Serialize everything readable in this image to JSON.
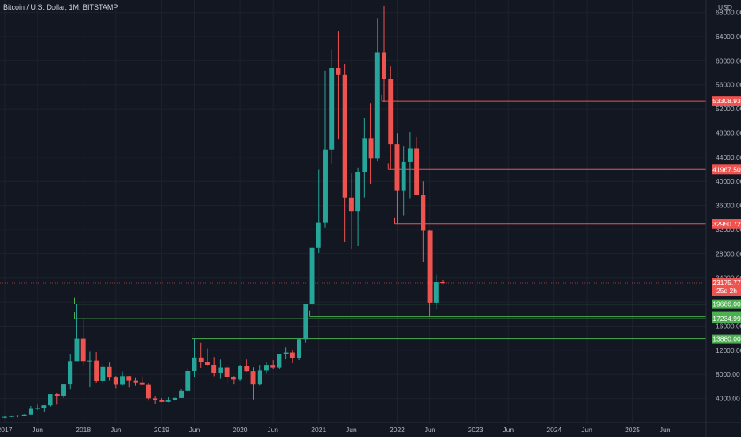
{
  "chart_data": {
    "type": "candlestick",
    "title": "Bitcoin / U.S. Dollar, 1M, BITSTAMP",
    "currency": "USD",
    "ylim": [
      0,
      69000
    ],
    "ytick_values": [
      4000,
      8000,
      12000,
      16000,
      20000,
      24000,
      28000,
      32000,
      36000,
      40000,
      44000,
      48000,
      52000,
      56000,
      60000,
      64000,
      68000
    ],
    "ytick_labels": [
      "4000.00",
      "8000.00",
      "12000.00",
      "16000.00",
      "20000.00",
      "24000.00",
      "28000.00",
      "32000.00",
      "36000.00",
      "40000.00",
      "44000.00",
      "48000.00",
      "52000.00",
      "56000.00",
      "60000.00",
      "64000.00",
      "68000.00"
    ],
    "x_start": "2017-01",
    "x_end": "2025-12",
    "xticks": [
      {
        "date": "2017-01",
        "label": "2017"
      },
      {
        "date": "2017-06",
        "label": "Jun"
      },
      {
        "date": "2018-01",
        "label": "2018"
      },
      {
        "date": "2018-06",
        "label": "Jun"
      },
      {
        "date": "2019-01",
        "label": "2019"
      },
      {
        "date": "2019-06",
        "label": "Jun"
      },
      {
        "date": "2020-01",
        "label": "2020"
      },
      {
        "date": "2020-06",
        "label": "Jun"
      },
      {
        "date": "2021-01",
        "label": "2021"
      },
      {
        "date": "2021-06",
        "label": "Jun"
      },
      {
        "date": "2022-01",
        "label": "2022"
      },
      {
        "date": "2022-06",
        "label": "Jun"
      },
      {
        "date": "2023-01",
        "label": "2023"
      },
      {
        "date": "2023-06",
        "label": "Jun"
      },
      {
        "date": "2024-01",
        "label": "2024"
      },
      {
        "date": "2024-06",
        "label": "Jun"
      },
      {
        "date": "2025-01",
        "label": "2025"
      },
      {
        "date": "2025-06",
        "label": "Jun"
      }
    ],
    "colors": {
      "up": "#26a69a",
      "down": "#ef5350",
      "support": "#4caf50",
      "resistance": "#ef5350",
      "current": "#ef5350",
      "background": "#131722"
    },
    "candles": [
      {
        "date": "2017-01",
        "o": 970,
        "h": 1200,
        "l": 750,
        "c": 970
      },
      {
        "date": "2017-02",
        "o": 970,
        "h": 1200,
        "l": 920,
        "c": 1190
      },
      {
        "date": "2017-03",
        "o": 1190,
        "h": 1290,
        "l": 890,
        "c": 1080
      },
      {
        "date": "2017-04",
        "o": 1080,
        "h": 1420,
        "l": 1080,
        "c": 1350
      },
      {
        "date": "2017-05",
        "o": 1350,
        "h": 2760,
        "l": 1350,
        "c": 2300
      },
      {
        "date": "2017-06",
        "o": 2300,
        "h": 2990,
        "l": 2100,
        "c": 2480
      },
      {
        "date": "2017-07",
        "o": 2480,
        "h": 2920,
        "l": 1840,
        "c": 2870
      },
      {
        "date": "2017-08",
        "o": 2870,
        "h": 4480,
        "l": 2700,
        "c": 4730
      },
      {
        "date": "2017-09",
        "o": 4730,
        "h": 4980,
        "l": 2980,
        "c": 4340
      },
      {
        "date": "2017-10",
        "o": 4340,
        "h": 6470,
        "l": 4110,
        "c": 6440
      },
      {
        "date": "2017-11",
        "o": 6440,
        "h": 11400,
        "l": 5500,
        "c": 10230
      },
      {
        "date": "2017-12",
        "o": 10230,
        "h": 19666,
        "l": 10230,
        "c": 13880
      },
      {
        "date": "2018-01",
        "o": 13880,
        "h": 17200,
        "l": 9400,
        "c": 10230
      },
      {
        "date": "2018-02",
        "o": 10230,
        "h": 11790,
        "l": 5920,
        "c": 10320
      },
      {
        "date": "2018-03",
        "o": 10320,
        "h": 11700,
        "l": 6600,
        "c": 6930
      },
      {
        "date": "2018-04",
        "o": 6930,
        "h": 9760,
        "l": 6430,
        "c": 9240
      },
      {
        "date": "2018-05",
        "o": 9240,
        "h": 9990,
        "l": 7040,
        "c": 7490
      },
      {
        "date": "2018-06",
        "o": 7490,
        "h": 7760,
        "l": 5750,
        "c": 6390
      },
      {
        "date": "2018-07",
        "o": 6390,
        "h": 8500,
        "l": 6110,
        "c": 7730
      },
      {
        "date": "2018-08",
        "o": 7730,
        "h": 7760,
        "l": 5880,
        "c": 7030
      },
      {
        "date": "2018-09",
        "o": 7030,
        "h": 7410,
        "l": 6100,
        "c": 6620
      },
      {
        "date": "2018-10",
        "o": 6620,
        "h": 7680,
        "l": 6200,
        "c": 6370
      },
      {
        "date": "2018-11",
        "o": 6370,
        "h": 6580,
        "l": 3650,
        "c": 4040
      },
      {
        "date": "2018-12",
        "o": 4040,
        "h": 4340,
        "l": 3150,
        "c": 3700
      },
      {
        "date": "2019-01",
        "o": 3700,
        "h": 4070,
        "l": 3400,
        "c": 3440
      },
      {
        "date": "2019-02",
        "o": 3440,
        "h": 4210,
        "l": 3390,
        "c": 3820
      },
      {
        "date": "2019-03",
        "o": 3820,
        "h": 4160,
        "l": 3670,
        "c": 4100
      },
      {
        "date": "2019-04",
        "o": 4100,
        "h": 5620,
        "l": 4080,
        "c": 5290
      },
      {
        "date": "2019-05",
        "o": 5290,
        "h": 9000,
        "l": 5200,
        "c": 8560
      },
      {
        "date": "2019-06",
        "o": 8560,
        "h": 13880,
        "l": 7500,
        "c": 10820
      },
      {
        "date": "2019-07",
        "o": 10820,
        "h": 13200,
        "l": 9100,
        "c": 10080
      },
      {
        "date": "2019-08",
        "o": 10080,
        "h": 12300,
        "l": 9400,
        "c": 9600
      },
      {
        "date": "2019-09",
        "o": 9600,
        "h": 10900,
        "l": 7710,
        "c": 8300
      },
      {
        "date": "2019-10",
        "o": 8300,
        "h": 10500,
        "l": 7300,
        "c": 9150
      },
      {
        "date": "2019-11",
        "o": 9150,
        "h": 9500,
        "l": 6550,
        "c": 7570
      },
      {
        "date": "2019-12",
        "o": 7570,
        "h": 7750,
        "l": 6430,
        "c": 7190
      },
      {
        "date": "2020-01",
        "o": 7190,
        "h": 9580,
        "l": 6850,
        "c": 9350
      },
      {
        "date": "2020-02",
        "o": 9350,
        "h": 10500,
        "l": 8450,
        "c": 8540
      },
      {
        "date": "2020-03",
        "o": 8540,
        "h": 9190,
        "l": 3850,
        "c": 6420
      },
      {
        "date": "2020-04",
        "o": 6420,
        "h": 9460,
        "l": 6150,
        "c": 8630
      },
      {
        "date": "2020-05",
        "o": 8630,
        "h": 10070,
        "l": 8120,
        "c": 9460
      },
      {
        "date": "2020-06",
        "o": 9460,
        "h": 10390,
        "l": 8900,
        "c": 9140
      },
      {
        "date": "2020-07",
        "o": 9140,
        "h": 11450,
        "l": 8970,
        "c": 11350
      },
      {
        "date": "2020-08",
        "o": 11350,
        "h": 12470,
        "l": 10520,
        "c": 11650
      },
      {
        "date": "2020-09",
        "o": 11650,
        "h": 12070,
        "l": 9880,
        "c": 10780
      },
      {
        "date": "2020-10",
        "o": 10780,
        "h": 14100,
        "l": 10400,
        "c": 13790
      },
      {
        "date": "2020-11",
        "o": 13790,
        "h": 19480,
        "l": 13200,
        "c": 19700
      },
      {
        "date": "2020-12",
        "o": 19700,
        "h": 29300,
        "l": 17569,
        "c": 29000
      },
      {
        "date": "2021-01",
        "o": 29000,
        "h": 41950,
        "l": 28100,
        "c": 33100
      },
      {
        "date": "2021-02",
        "o": 33100,
        "h": 58350,
        "l": 32300,
        "c": 45200
      },
      {
        "date": "2021-03",
        "o": 45200,
        "h": 61800,
        "l": 43000,
        "c": 58800
      },
      {
        "date": "2021-04",
        "o": 58800,
        "h": 64900,
        "l": 47000,
        "c": 57700
      },
      {
        "date": "2021-05",
        "o": 57700,
        "h": 59500,
        "l": 30000,
        "c": 37300
      },
      {
        "date": "2021-06",
        "o": 37300,
        "h": 41300,
        "l": 28800,
        "c": 35000
      },
      {
        "date": "2021-07",
        "o": 35000,
        "h": 42300,
        "l": 29300,
        "c": 41500
      },
      {
        "date": "2021-08",
        "o": 41500,
        "h": 50500,
        "l": 37300,
        "c": 47100
      },
      {
        "date": "2021-09",
        "o": 47100,
        "h": 52900,
        "l": 39600,
        "c": 43800
      },
      {
        "date": "2021-10",
        "o": 43800,
        "h": 67000,
        "l": 43300,
        "c": 61300
      },
      {
        "date": "2021-11",
        "o": 61300,
        "h": 69000,
        "l": 53200,
        "c": 57000
      },
      {
        "date": "2021-12",
        "o": 57000,
        "h": 59100,
        "l": 42000,
        "c": 46200
      },
      {
        "date": "2022-01",
        "o": 46200,
        "h": 47900,
        "l": 32950,
        "c": 38500
      },
      {
        "date": "2022-02",
        "o": 38500,
        "h": 45800,
        "l": 34300,
        "c": 43200
      },
      {
        "date": "2022-03",
        "o": 43200,
        "h": 48200,
        "l": 37200,
        "c": 45500
      },
      {
        "date": "2022-04",
        "o": 45500,
        "h": 47400,
        "l": 37700,
        "c": 37700
      },
      {
        "date": "2022-05",
        "o": 37700,
        "h": 40000,
        "l": 26600,
        "c": 31800
      },
      {
        "date": "2022-06",
        "o": 31800,
        "h": 31900,
        "l": 17569,
        "c": 19900
      },
      {
        "date": "2022-07",
        "o": 19900,
        "h": 24600,
        "l": 18800,
        "c": 23300
      },
      {
        "date": "2022-08",
        "o": 23300,
        "h": 23700,
        "l": 22900,
        "c": 23175.77
      }
    ],
    "levels": [
      {
        "value": 53308.93,
        "label": "53308.93",
        "type": "resistance",
        "from": "2021-11"
      },
      {
        "value": 41967.5,
        "label": "41967.50",
        "type": "resistance",
        "from": "2021-12"
      },
      {
        "value": 32950.72,
        "label": "32950.72",
        "type": "resistance",
        "from": "2022-01"
      },
      {
        "value": 19666.0,
        "label": "19666.00",
        "type": "support",
        "from": "2017-12"
      },
      {
        "value": 17569.58,
        "label": "17569.58",
        "type": "support",
        "from": "2020-12"
      },
      {
        "value": 17234.99,
        "label": "17234.99",
        "type": "support",
        "from": "2017-12"
      },
      {
        "value": 13880.0,
        "label": "13880.00",
        "type": "support",
        "from": "2019-06"
      }
    ],
    "current": {
      "value": 23175.77,
      "label": "23175.77",
      "countdown": "25d 2h"
    }
  }
}
